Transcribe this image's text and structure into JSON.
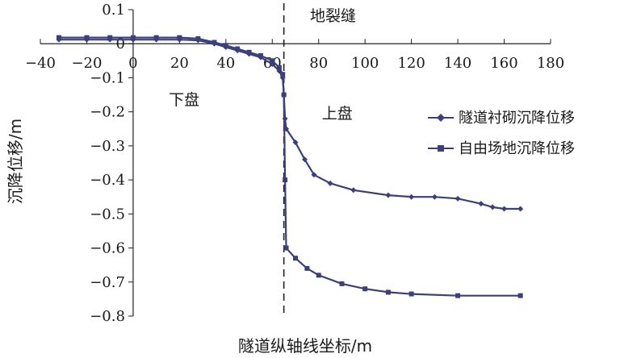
{
  "chart_data": {
    "type": "line",
    "xlabel": "隧道纵轴线坐标/m",
    "ylabel": "沉降位移/m",
    "xlim": [
      -40,
      180
    ],
    "ylim": [
      -0.8,
      0.1
    ],
    "x_ticks": [
      -40,
      -20,
      0,
      20,
      40,
      60,
      80,
      100,
      120,
      140,
      160,
      180
    ],
    "y_ticks": [
      0.1,
      0,
      -0.1,
      -0.2,
      -0.3,
      -0.4,
      -0.5,
      -0.6,
      -0.7,
      -0.8
    ],
    "x_tick_labels": [
      "−40",
      "−20",
      "0",
      "20",
      "40",
      "60",
      "80",
      "100",
      "120",
      "140",
      "160",
      "180"
    ],
    "y_tick_labels": [
      "0.1",
      "0",
      "−0.1",
      "−0.2",
      "−0.3",
      "−0.4",
      "−0.5",
      "−0.6",
      "−0.7",
      "−0.8"
    ],
    "legend_position": "right",
    "fault_line": {
      "x": 65,
      "label": "地裂缝"
    },
    "annotations": [
      {
        "text": "下盘",
        "x": 22,
        "y": -0.18
      },
      {
        "text": "上盘",
        "x": 88,
        "y": -0.22
      }
    ],
    "series": [
      {
        "name": "隧道衬砌沉降位移",
        "marker": "diamond",
        "color": "#3b3f7a",
        "points": [
          [
            -32,
            0.012
          ],
          [
            -20,
            0.012
          ],
          [
            -10,
            0.012
          ],
          [
            0,
            0.012
          ],
          [
            10,
            0.012
          ],
          [
            20,
            0.012
          ],
          [
            28,
            0.01
          ],
          [
            35,
            0.0
          ],
          [
            40,
            -0.01
          ],
          [
            45,
            -0.02
          ],
          [
            50,
            -0.03
          ],
          [
            55,
            -0.04
          ],
          [
            60,
            -0.06
          ],
          [
            63,
            -0.08
          ],
          [
            64.5,
            -0.1
          ],
          [
            65,
            -0.15
          ],
          [
            65.5,
            -0.22
          ],
          [
            66,
            -0.25
          ],
          [
            70,
            -0.29
          ],
          [
            74,
            -0.34
          ],
          [
            78,
            -0.385
          ],
          [
            85,
            -0.41
          ],
          [
            95,
            -0.43
          ],
          [
            110,
            -0.445
          ],
          [
            120,
            -0.45
          ],
          [
            130,
            -0.45
          ],
          [
            140,
            -0.455
          ],
          [
            150,
            -0.47
          ],
          [
            155,
            -0.48
          ],
          [
            160,
            -0.485
          ],
          [
            167,
            -0.485
          ]
        ]
      },
      {
        "name": "自由场地沉降位移",
        "marker": "square",
        "color": "#3b3f7a",
        "points": [
          [
            -32,
            0.018
          ],
          [
            -20,
            0.018
          ],
          [
            -10,
            0.018
          ],
          [
            0,
            0.018
          ],
          [
            10,
            0.018
          ],
          [
            20,
            0.018
          ],
          [
            28,
            0.015
          ],
          [
            35,
            0.004
          ],
          [
            40,
            -0.005
          ],
          [
            45,
            -0.015
          ],
          [
            50,
            -0.025
          ],
          [
            55,
            -0.035
          ],
          [
            60,
            -0.05
          ],
          [
            63,
            -0.07
          ],
          [
            64.5,
            -0.09
          ],
          [
            65,
            -0.15
          ],
          [
            65.5,
            -0.4
          ],
          [
            66,
            -0.6
          ],
          [
            70,
            -0.63
          ],
          [
            75,
            -0.66
          ],
          [
            80,
            -0.68
          ],
          [
            90,
            -0.705
          ],
          [
            100,
            -0.72
          ],
          [
            110,
            -0.73
          ],
          [
            120,
            -0.735
          ],
          [
            140,
            -0.74
          ],
          [
            167,
            -0.74
          ]
        ]
      }
    ]
  }
}
